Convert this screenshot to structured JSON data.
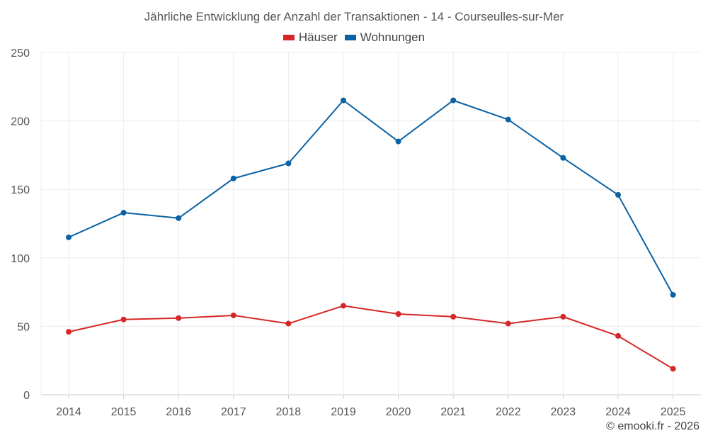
{
  "chart_data": {
    "type": "line",
    "title": "Jährliche Entwicklung der Anzahl der Transaktionen - 14 - Courseulles-sur-Mer",
    "categories": [
      "2014",
      "2015",
      "2016",
      "2017",
      "2018",
      "2019",
      "2020",
      "2021",
      "2022",
      "2023",
      "2024",
      "2025"
    ],
    "series": [
      {
        "name": "Häuser",
        "color": "#d62728",
        "values": [
          46,
          55,
          56,
          58,
          52,
          65,
          59,
          57,
          52,
          57,
          43,
          19
        ]
      },
      {
        "name": "Wohnungen",
        "color": "#0b62a4",
        "values": [
          115,
          133,
          129,
          158,
          169,
          215,
          185,
          215,
          201,
          173,
          146,
          73
        ]
      }
    ],
    "ylim": [
      0,
      250
    ],
    "yticks": [
      0,
      50,
      100,
      150,
      200,
      250
    ],
    "xlabel": "",
    "ylabel": "",
    "grid": true,
    "legend_position": "top-center"
  },
  "credit": "© emooki.fr - 2026"
}
